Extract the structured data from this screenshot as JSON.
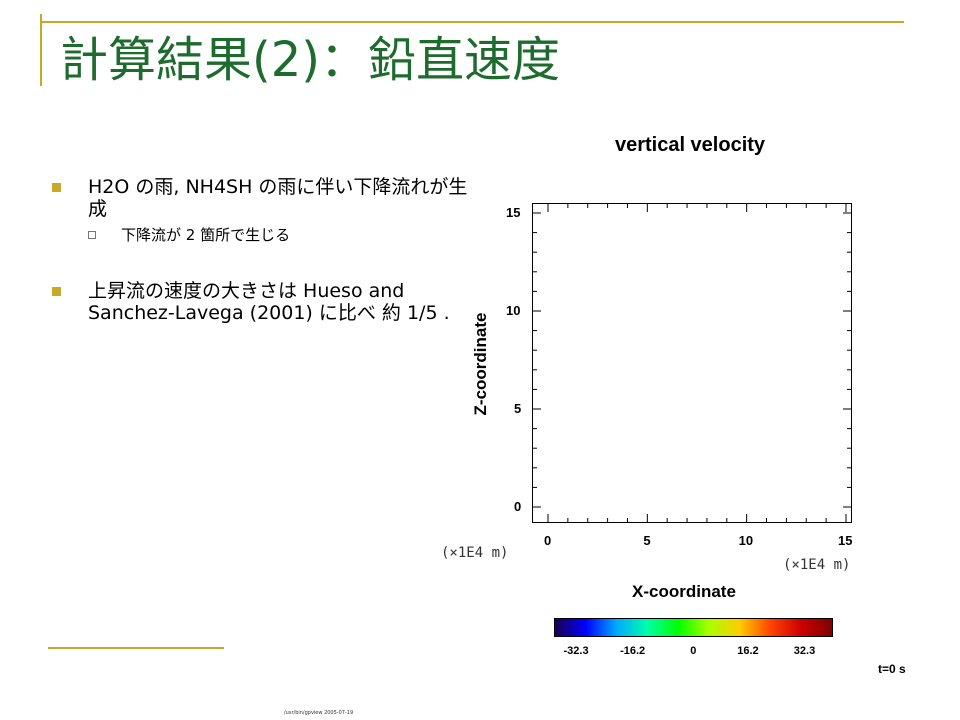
{
  "slide": {
    "title": "計算結果(2)：鉛直速度",
    "bullets": [
      {
        "text": "H2O の雨, NH4SH の雨に伴い下降流れが生成"
      },
      {
        "text": "上昇流の速度の大きさは Hueso and Sanchez-Lavega (2001) に比べ 約 1/5 ."
      }
    ],
    "sub_bullets": [
      {
        "text": "下降流が 2 箇所で生じる"
      }
    ],
    "footer": "/usr/bin/gpview 2005-07-19",
    "accent_color": "#c8a828",
    "title_color": "#1e6b2e"
  },
  "chart_data": {
    "type": "heatmap",
    "title": "vertical velocity",
    "xlabel": "X-coordinate",
    "ylabel": "Z-coordinate",
    "x_unit": "(×1E4 m)",
    "y_unit": "(×1E4 m)",
    "xlim": [
      0,
      15
    ],
    "ylim": [
      0,
      15
    ],
    "x_ticks": [
      "0",
      "5",
      "10",
      "15"
    ],
    "y_ticks": [
      "0",
      "5",
      "10",
      "15"
    ],
    "values": [],
    "colorbar": {
      "ticks": [
        "-32.3",
        "-16.2",
        "0",
        "16.2",
        "32.3"
      ],
      "range": [
        -32.3,
        32.3
      ]
    },
    "time_label": "t=0 s"
  }
}
